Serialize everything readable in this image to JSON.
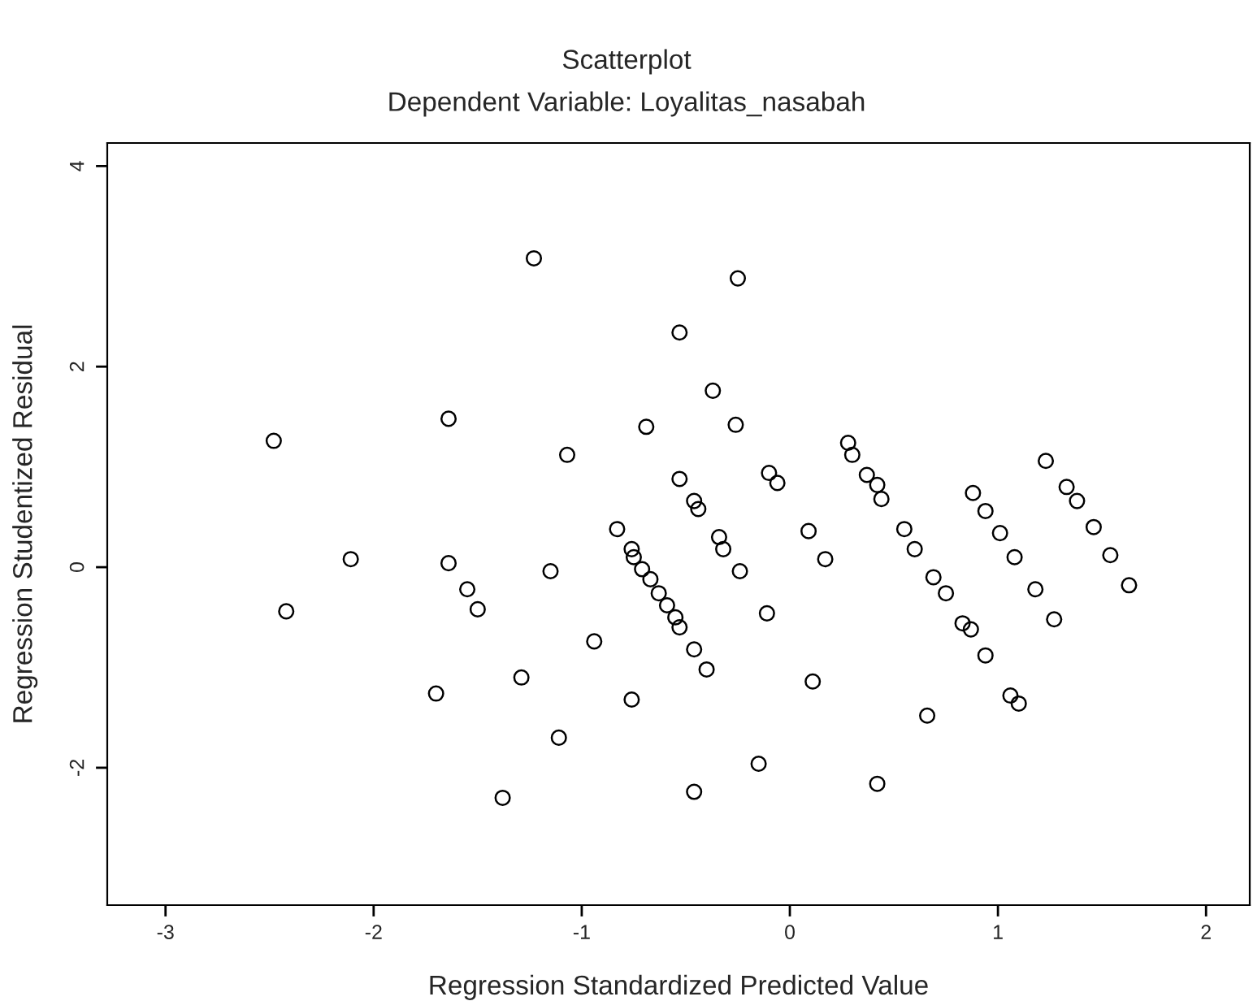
{
  "chart_data": {
    "type": "scatter",
    "title": "Scatterplot",
    "subtitle": "Dependent Variable: Loyalitas_nasabah",
    "xlabel": "Regression Standardized Predicted Value",
    "ylabel": "Regression Studentized Residual",
    "x": [
      -2.48,
      -2.42,
      -2.11,
      -1.64,
      -1.64,
      -1.55,
      -1.5,
      -1.7,
      -1.29,
      -1.38,
      -1.23,
      -1.07,
      -1.15,
      -1.11,
      -0.94,
      -0.83,
      -0.76,
      -0.76,
      -0.69,
      -0.75,
      -0.71,
      -0.67,
      -0.63,
      -0.59,
      -0.55,
      -0.53,
      -0.46,
      -0.4,
      -0.53,
      -0.25,
      -0.37,
      -0.26,
      -0.53,
      -0.46,
      -0.44,
      -0.34,
      -0.32,
      -0.24,
      -0.1,
      -0.06,
      0.09,
      0.17,
      -0.11,
      0.11,
      -0.15,
      -0.46,
      0.28,
      0.3,
      0.37,
      0.42,
      0.44,
      0.55,
      0.6,
      0.69,
      0.75,
      0.83,
      0.87,
      0.94,
      1.06,
      1.1,
      0.66,
      0.42,
      0.88,
      0.94,
      1.01,
      1.08,
      1.18,
      1.27,
      1.23,
      1.33,
      1.38,
      1.46,
      1.54,
      1.63
    ],
    "values": [
      1.26,
      -0.44,
      0.08,
      1.48,
      0.04,
      -0.22,
      -0.42,
      -1.26,
      -1.1,
      -2.3,
      3.08,
      1.12,
      -0.04,
      -1.7,
      -0.74,
      0.38,
      0.18,
      -1.32,
      1.4,
      0.1,
      -0.02,
      -0.12,
      -0.26,
      -0.38,
      -0.5,
      -0.6,
      -0.82,
      -1.02,
      2.34,
      2.88,
      1.76,
      1.42,
      0.88,
      0.66,
      0.58,
      0.3,
      0.18,
      -0.04,
      0.94,
      0.84,
      0.36,
      0.08,
      -0.46,
      -1.14,
      -1.96,
      -2.24,
      1.24,
      1.12,
      0.92,
      0.82,
      0.68,
      0.38,
      0.18,
      -0.1,
      -0.26,
      -0.56,
      -0.62,
      -0.88,
      -1.28,
      -1.36,
      -1.48,
      -2.16,
      0.74,
      0.56,
      0.34,
      0.1,
      -0.22,
      -0.52,
      1.06,
      0.8,
      0.66,
      0.4,
      0.12,
      -0.18
    ],
    "color": "#000000",
    "marker": "circle",
    "xlim": [
      -3.28,
      2.21
    ],
    "ylim": [
      -3.37,
      4.23
    ],
    "xticks": [
      -3,
      -2,
      -1,
      0,
      1,
      2
    ],
    "yticks": [
      -2,
      0,
      2,
      4
    ],
    "grid": false
  }
}
